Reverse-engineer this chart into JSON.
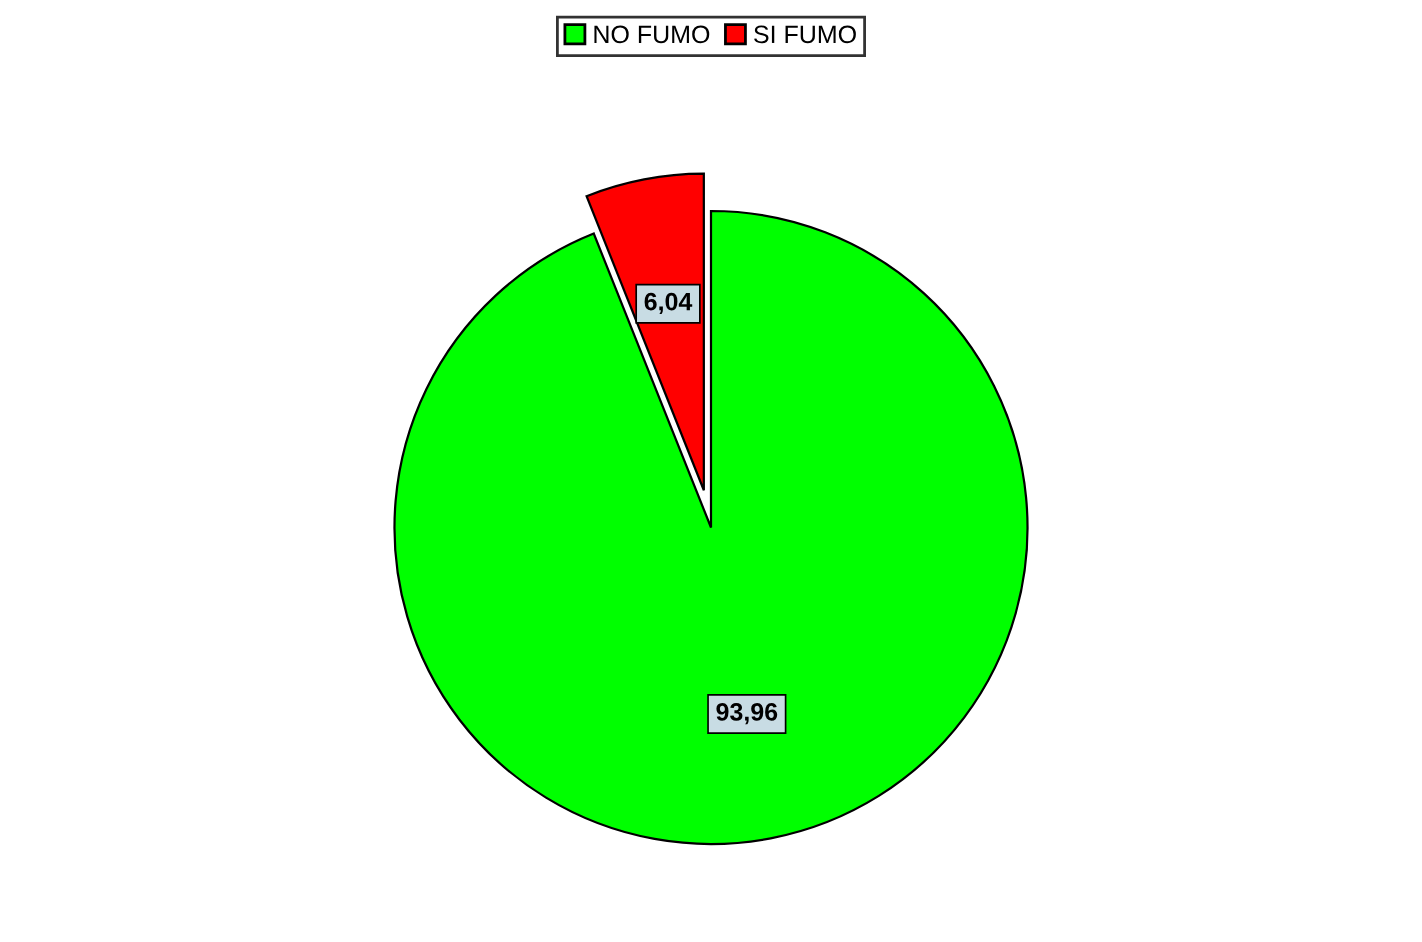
{
  "chart_data": {
    "type": "pie",
    "categories": [
      "NO FUMO",
      "SI FUMO"
    ],
    "values": [
      93.96,
      6.04
    ],
    "value_labels": [
      "93,96",
      "6,04"
    ],
    "colors": [
      "#00ff00",
      "#ff0000"
    ],
    "legend": "top"
  }
}
